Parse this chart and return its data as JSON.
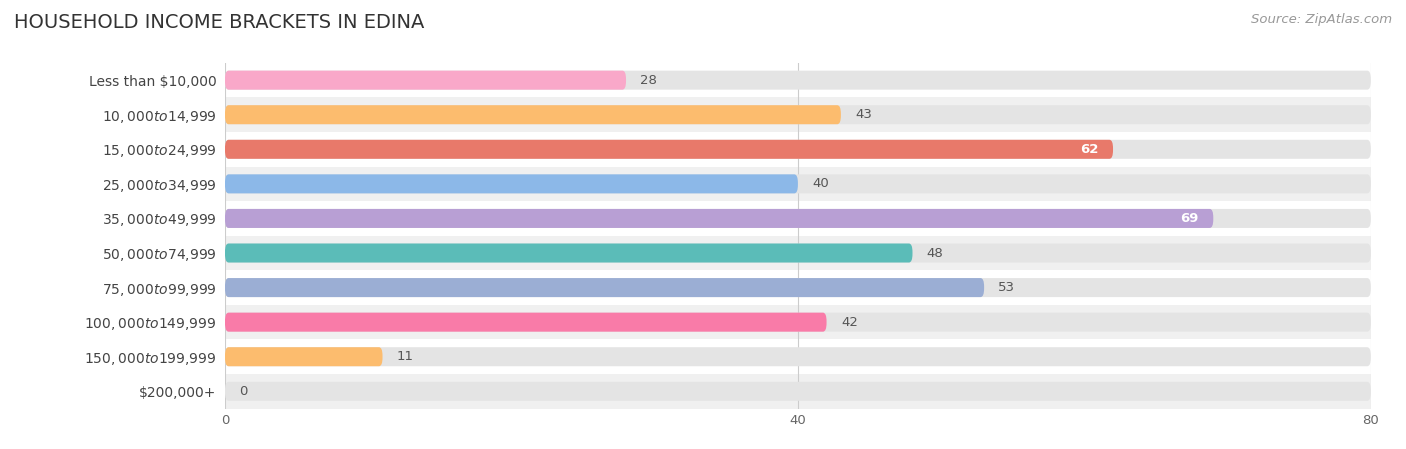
{
  "title": "HOUSEHOLD INCOME BRACKETS IN EDINA",
  "source": "Source: ZipAtlas.com",
  "categories": [
    "Less than $10,000",
    "$10,000 to $14,999",
    "$15,000 to $24,999",
    "$25,000 to $34,999",
    "$35,000 to $49,999",
    "$50,000 to $74,999",
    "$75,000 to $99,999",
    "$100,000 to $149,999",
    "$150,000 to $199,999",
    "$200,000+"
  ],
  "values": [
    28,
    43,
    62,
    40,
    69,
    48,
    53,
    42,
    11,
    0
  ],
  "bar_colors": [
    "#F9A8C9",
    "#FCBC6E",
    "#E8796A",
    "#8CB8E8",
    "#B89FD4",
    "#5BBCB8",
    "#9BAED4",
    "#F97BA8",
    "#FCBC6E",
    "#F4A8A0"
  ],
  "row_colors": [
    "#ffffff",
    "#f0f0f0"
  ],
  "bar_bg_color": "#e4e4e4",
  "xlim": [
    0,
    80
  ],
  "xticks": [
    0,
    40,
    80
  ],
  "title_fontsize": 14,
  "label_fontsize": 10,
  "value_fontsize": 9.5,
  "source_fontsize": 9.5,
  "value_inside_threshold": 58
}
